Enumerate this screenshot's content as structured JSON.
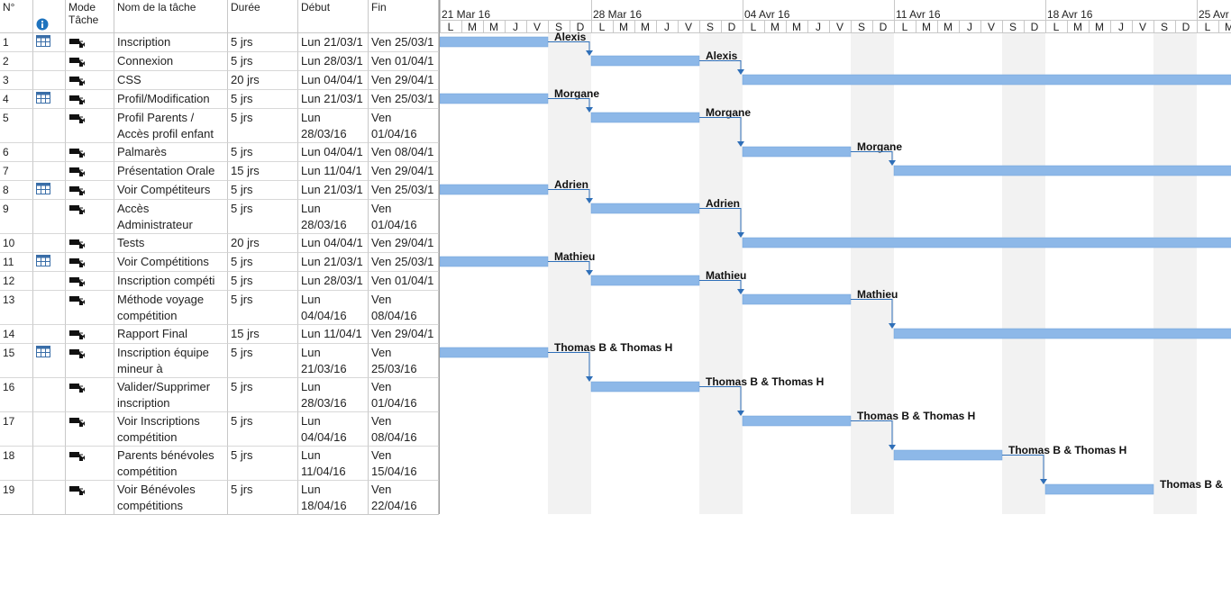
{
  "header": {
    "num": "N°",
    "mode_line1": "Mode",
    "mode_line2": "Tâche",
    "name": "Nom de la tâche",
    "duration": "Durée",
    "start": "Début",
    "end": "Fin"
  },
  "timescale": {
    "weeks": [
      "21 Mar 16",
      "28 Mar 16",
      "04 Avr 16",
      "11 Avr 16",
      "18 Avr 16",
      "25 Avr"
    ],
    "day_letters": [
      "L",
      "M",
      "M",
      "J",
      "V",
      "S",
      "D"
    ]
  },
  "colors": {
    "bar": "#8db8e8",
    "bar_border": "#6e9fd8",
    "link": "#2f6fb8",
    "weekend": "#f2f2f2",
    "grid": "#c8c8c8"
  },
  "tasks": [
    {
      "id": "1",
      "name": "Inscription",
      "duration": "5 jrs",
      "start": "Lun 21/03/1",
      "end": "Ven 25/03/1",
      "resource": "Alexis",
      "cal": true
    },
    {
      "id": "2",
      "name": "Connexion",
      "duration": "5 jrs",
      "start": "Lun 28/03/1",
      "end": "Ven 01/04/1",
      "resource": "Alexis",
      "cal": false
    },
    {
      "id": "3",
      "name": "CSS",
      "duration": "20 jrs",
      "start": "Lun 04/04/1",
      "end": "Ven 29/04/1",
      "resource": "",
      "cal": false
    },
    {
      "id": "4",
      "name": "Profil/Modification",
      "duration": "5 jrs",
      "start": "Lun 21/03/1",
      "end": "Ven 25/03/1",
      "resource": "Morgane",
      "cal": true
    },
    {
      "id": "5",
      "name": "Profil Parents / Accès profil enfant",
      "duration": "5 jrs",
      "start": "Lun 28/03/16",
      "end": "Ven 01/04/16",
      "resource": "Morgane",
      "cal": false
    },
    {
      "id": "6",
      "name": "Palmarès",
      "duration": "5 jrs",
      "start": "Lun 04/04/1",
      "end": "Ven 08/04/1",
      "resource": "Morgane",
      "cal": false
    },
    {
      "id": "7",
      "name": "Présentation Orale",
      "duration": "15 jrs",
      "start": "Lun 11/04/1",
      "end": "Ven 29/04/1",
      "resource": "",
      "cal": false
    },
    {
      "id": "8",
      "name": "Voir Compétiteurs",
      "duration": "5 jrs",
      "start": "Lun 21/03/1",
      "end": "Ven 25/03/1",
      "resource": "Adrien",
      "cal": true
    },
    {
      "id": "9",
      "name": "Accès Administrateur",
      "duration": "5 jrs",
      "start": "Lun 28/03/16",
      "end": "Ven 01/04/16",
      "resource": "Adrien",
      "cal": false
    },
    {
      "id": "10",
      "name": "Tests",
      "duration": "20 jrs",
      "start": "Lun 04/04/1",
      "end": "Ven 29/04/1",
      "resource": "",
      "cal": false
    },
    {
      "id": "11",
      "name": "Voir Compétitions",
      "duration": "5 jrs",
      "start": "Lun 21/03/1",
      "end": "Ven 25/03/1",
      "resource": "Mathieu",
      "cal": true
    },
    {
      "id": "12",
      "name": "Inscription compéti",
      "duration": "5 jrs",
      "start": "Lun 28/03/1",
      "end": "Ven 01/04/1",
      "resource": "Mathieu",
      "cal": false
    },
    {
      "id": "13",
      "name": "Méthode voyage compétition",
      "duration": "5 jrs",
      "start": "Lun 04/04/16",
      "end": "Ven 08/04/16",
      "resource": "Mathieu",
      "cal": false
    },
    {
      "id": "14",
      "name": "Rapport Final",
      "duration": "15 jrs",
      "start": "Lun 11/04/1",
      "end": "Ven 29/04/1",
      "resource": "",
      "cal": false
    },
    {
      "id": "15",
      "name": "Inscription équipe mineur à",
      "duration": "5 jrs",
      "start": "Lun 21/03/16",
      "end": "Ven 25/03/16",
      "resource": "Thomas B & Thomas H",
      "cal": true
    },
    {
      "id": "16",
      "name": "Valider/Supprimer inscription",
      "duration": "5 jrs",
      "start": "Lun 28/03/16",
      "end": "Ven 01/04/16",
      "resource": "Thomas B & Thomas H",
      "cal": false
    },
    {
      "id": "17",
      "name": "Voir Inscriptions compétition",
      "duration": "5 jrs",
      "start": "Lun 04/04/16",
      "end": "Ven 08/04/16",
      "resource": "Thomas B & Thomas H",
      "cal": false
    },
    {
      "id": "18",
      "name": "Parents bénévoles compétition",
      "duration": "5 jrs",
      "start": "Lun 11/04/16",
      "end": "Ven 15/04/16",
      "resource": "Thomas B & Thomas H",
      "cal": false
    },
    {
      "id": "19",
      "name": "Voir Bénévoles compétitions",
      "duration": "5 jrs",
      "start": "Lun 18/04/16",
      "end": "Ven 22/04/16",
      "resource": "Thomas B & ",
      "cal": false
    }
  ]
}
